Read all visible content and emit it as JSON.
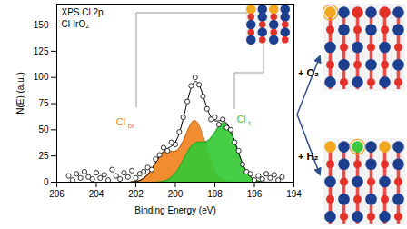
{
  "chart_data": {
    "type": "line",
    "title": "XPS Cl 2p",
    "subtitle": "Cl-IrO₂",
    "xlabel": "Binding Energy (eV)",
    "ylabel": "N(E) (a.u.)",
    "xlim": [
      206,
      194
    ],
    "xticks": [
      206,
      204,
      202,
      200,
      198,
      196,
      194
    ],
    "ylim": [
      0,
      170
    ],
    "yticks": [
      0,
      25,
      50,
      75,
      100,
      125,
      150
    ],
    "grid": false,
    "series": [
      {
        "type": "area",
        "color": "#f0821e",
        "x": [
          195.5,
          195.75,
          196,
          196.25,
          196.5,
          196.75,
          197,
          197.25,
          197.5,
          197.75,
          198,
          198.25,
          198.5,
          198.75,
          199,
          199.25,
          199.5,
          199.75,
          200,
          200.25,
          200.5,
          200.75,
          201,
          201.25,
          201.5,
          201.75,
          202,
          202.25,
          202.5
        ],
        "values": [
          0,
          0,
          0,
          0,
          0,
          0,
          0.1,
          0.4,
          1.4,
          4.4,
          11.1,
          22.9,
          38.4,
          52.5,
          58.7,
          54.4,
          43.7,
          34.0,
          29.6,
          29.7,
          29.4,
          25.7,
          18.6,
          11.1,
          5.3,
          2.1,
          0.7,
          0.2,
          0
        ]
      },
      {
        "type": "area",
        "color": "#35c935",
        "x": [
          195.5,
          195.75,
          196,
          196.25,
          196.5,
          196.75,
          197,
          197.25,
          197.5,
          197.75,
          198,
          198.25,
          198.5,
          198.75,
          199,
          199.25,
          199.5,
          199.75,
          200,
          200.25,
          200.5,
          200.75,
          201,
          201.25,
          201.5,
          201.75,
          202,
          202.25,
          202.5
        ],
        "values": [
          0.2,
          0.8,
          2.4,
          6.3,
          13.7,
          25.2,
          39.0,
          50.9,
          56.5,
          54.4,
          47.6,
          41.2,
          38.4,
          38.4,
          37.4,
          32.9,
          24.9,
          16.0,
          8.7,
          4.0,
          1.5,
          0.5,
          0.1,
          0,
          0,
          0,
          0,
          0,
          0
        ]
      },
      {
        "type": "line",
        "color": "#000000",
        "x": [
          194,
          195.5,
          195.75,
          196,
          196.25,
          196.5,
          196.75,
          197,
          197.25,
          197.5,
          197.75,
          198,
          198.25,
          198.5,
          198.75,
          199,
          199.25,
          199.5,
          199.75,
          200,
          200.25,
          200.5,
          200.75,
          201,
          201.25,
          201.5,
          201.75,
          202,
          202.25,
          202.5,
          206
        ],
        "values": [
          0,
          0.2,
          0.8,
          2.4,
          6.3,
          13.7,
          25.2,
          39.1,
          51.3,
          57.9,
          58.8,
          58.7,
          64.1,
          76.8,
          90.9,
          96.1,
          87.3,
          68.6,
          50.0,
          38.3,
          33.7,
          30.9,
          26.2,
          18.7,
          11.1,
          5.3,
          2.1,
          0.7,
          0.2,
          0,
          0
        ]
      },
      {
        "type": "scatter",
        "color": "#000000",
        "marker": "open_circle",
        "x": [
          205.4,
          205.2,
          205.0,
          204.8,
          204.6,
          204.4,
          204.2,
          204.0,
          203.8,
          203.6,
          203.4,
          203.2,
          203.0,
          202.8,
          202.6,
          202.4,
          202.2,
          202.0,
          201.8,
          201.6,
          201.4,
          201.2,
          201.0,
          200.8,
          200.6,
          200.4,
          200.2,
          200.0,
          199.8,
          199.6,
          199.4,
          199.2,
          199.0,
          198.8,
          198.6,
          198.4,
          198.2,
          198.0,
          197.8,
          197.6,
          197.4,
          197.2,
          197.0,
          196.8,
          196.6,
          196.4,
          196.2,
          196.0,
          195.8,
          195.6,
          195.4,
          195.2,
          195.0,
          194.8,
          194.6
        ],
        "values": [
          6,
          2,
          8,
          4,
          10,
          5,
          3,
          9,
          4,
          7,
          2,
          12,
          6,
          3,
          9,
          5,
          11,
          4,
          8,
          10,
          14,
          12,
          22,
          26,
          33,
          30,
          38,
          36,
          48,
          62,
          77,
          92,
          100,
          93,
          82,
          70,
          60,
          62,
          55,
          60,
          52,
          50,
          38,
          30,
          17,
          10,
          8,
          2,
          6,
          3,
          8,
          4,
          7,
          2,
          5
        ]
      }
    ],
    "annotations": [
      {
        "text": "Cl",
        "subscript": "br",
        "x": 203.0,
        "y": 57,
        "color": "#f0821e"
      },
      {
        "text": "Cl",
        "subscript": "t",
        "x": 196.9,
        "y": 60,
        "color": "#35c935"
      }
    ]
  },
  "diagram": {
    "reactions": [
      "+ O₂",
      "+ H₂"
    ]
  }
}
